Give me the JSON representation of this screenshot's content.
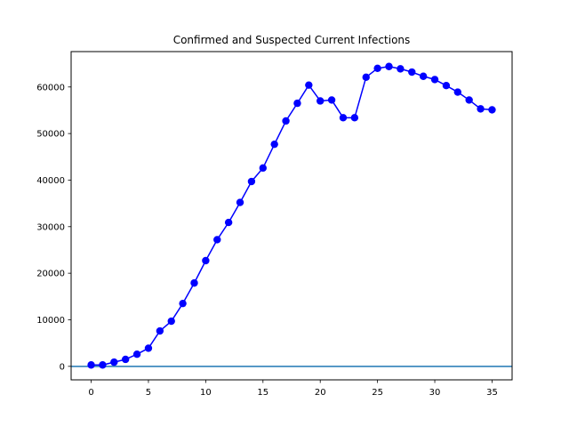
{
  "chart_data": {
    "type": "line",
    "title": "Confirmed and Suspected Current Infections",
    "xlabel": "",
    "ylabel": "",
    "xlim": [
      -1.75,
      36.75
    ],
    "ylim": [
      -2900,
      67600
    ],
    "xticks": [
      0,
      5,
      10,
      15,
      20,
      25,
      30,
      35
    ],
    "yticks": [
      0,
      10000,
      20000,
      30000,
      40000,
      50000,
      60000
    ],
    "grid": false,
    "legend": "none",
    "series": [
      {
        "line_color": "#0000ff",
        "marker": "circle",
        "x": [
          0,
          1,
          2,
          3,
          4,
          5,
          6,
          7,
          8,
          9,
          10,
          11,
          12,
          13,
          14,
          15,
          16,
          17,
          18,
          19,
          20,
          21,
          22,
          23,
          24,
          25,
          26,
          27,
          28,
          29,
          30,
          31,
          32,
          33,
          34,
          35
        ],
        "values": [
          300,
          300,
          900,
          1500,
          2600,
          3900,
          7600,
          9700,
          13500,
          17900,
          22700,
          27200,
          30900,
          35200,
          39700,
          42600,
          47700,
          52700,
          56500,
          60400,
          57000,
          57200,
          53400,
          53400,
          62100,
          64000,
          64400,
          63900,
          63200,
          62300,
          61600,
          60300,
          58900,
          57200,
          55300,
          55100
        ]
      }
    ],
    "reference_line": {
      "y": 0,
      "color": "#1f77b4"
    }
  }
}
